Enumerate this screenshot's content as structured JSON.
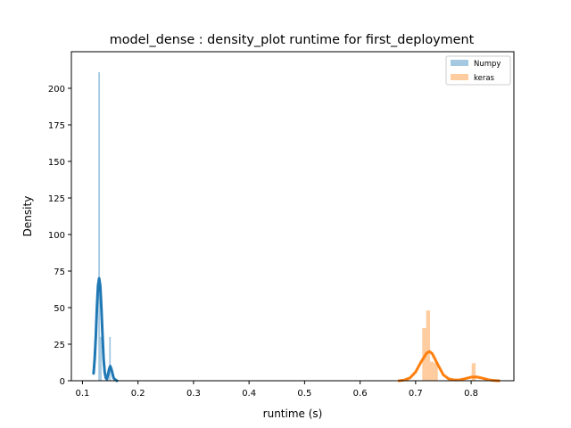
{
  "chart_data": {
    "type": "area",
    "title": "model_dense : density_plot runtime  for first_deployment",
    "xlabel": "runtime (s)",
    "ylabel": "Density",
    "xlim": [
      0.08,
      0.877
    ],
    "ylim": [
      0,
      225
    ],
    "xticks": [
      0.1,
      0.2,
      0.3,
      0.4,
      0.5,
      0.6,
      0.7,
      0.8
    ],
    "yticks": [
      0,
      25,
      50,
      75,
      100,
      125,
      150,
      175,
      200
    ],
    "grid": false,
    "legend_position": "top-right",
    "series": [
      {
        "name": "Numpy",
        "color": "#1f77b4",
        "histogram": [
          {
            "x0": 0.1285,
            "x1": 0.1315,
            "density": 211
          },
          {
            "x0": 0.1315,
            "x1": 0.1345,
            "density": 30
          },
          {
            "x0": 0.148,
            "x1": 0.151,
            "density": 30
          }
        ],
        "kde": {
          "x": [
            0.12,
            0.122,
            0.124,
            0.126,
            0.128,
            0.13,
            0.132,
            0.134,
            0.136,
            0.138,
            0.14,
            0.142,
            0.144,
            0.146,
            0.148,
            0.15,
            0.152,
            0.154,
            0.156,
            0.158,
            0.16,
            0.162
          ],
          "y": [
            5,
            15,
            30,
            50,
            65,
            70,
            65,
            50,
            32,
            15,
            6,
            2,
            1,
            4,
            8,
            10,
            8,
            5,
            2,
            1,
            0.5,
            0
          ]
        }
      },
      {
        "name": "keras",
        "color": "#ff7f0e",
        "histogram": [
          {
            "x0": 0.712,
            "x1": 0.719,
            "density": 36
          },
          {
            "x0": 0.719,
            "x1": 0.726,
            "density": 48
          },
          {
            "x0": 0.726,
            "x1": 0.733,
            "density": 13
          },
          {
            "x0": 0.733,
            "x1": 0.74,
            "density": 12
          },
          {
            "x0": 0.801,
            "x1": 0.808,
            "density": 12
          }
        ],
        "kde": {
          "x": [
            0.67,
            0.68,
            0.69,
            0.7,
            0.71,
            0.72,
            0.725,
            0.73,
            0.74,
            0.75,
            0.76,
            0.77,
            0.78,
            0.79,
            0.8,
            0.81,
            0.82,
            0.83,
            0.84,
            0.85
          ],
          "y": [
            0,
            0.5,
            2,
            6,
            13,
            19,
            20,
            18.5,
            11,
            4,
            1.2,
            0.5,
            0.6,
            1.5,
            2.5,
            2.6,
            1.8,
            0.8,
            0.2,
            0
          ]
        }
      }
    ]
  }
}
